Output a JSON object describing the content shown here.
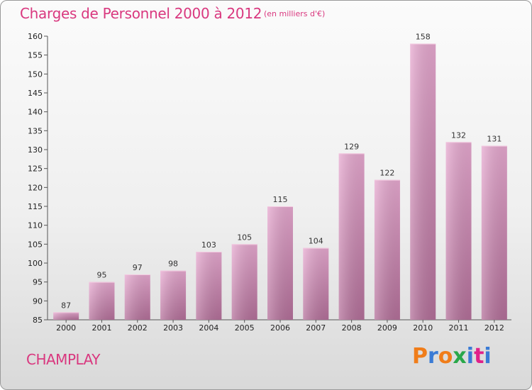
{
  "page": {
    "title": "Charges de Personnel 2000 à 2012",
    "subtitle": "(en milliers d'€)",
    "commune": "CHAMPLAY",
    "logo": {
      "letters": [
        "P",
        "r",
        "o",
        "x",
        "i",
        "t",
        "i"
      ],
      "colors": [
        "#f07d1a",
        "#3a7bd5",
        "#f07d1a",
        "#2aa84a",
        "#3a7bd5",
        "#e0218a",
        "#3a7bd5"
      ]
    }
  },
  "chart_data": {
    "type": "bar",
    "categories": [
      "2000",
      "2001",
      "2002",
      "2003",
      "2004",
      "2005",
      "2006",
      "2007",
      "2008",
      "2009",
      "2010",
      "2011",
      "2012"
    ],
    "values": [
      87,
      95,
      97,
      98,
      103,
      105,
      115,
      104,
      129,
      122,
      158,
      132,
      131
    ],
    "ylim": [
      85,
      160
    ],
    "yticks": [
      85,
      90,
      95,
      100,
      105,
      110,
      115,
      120,
      125,
      130,
      135,
      140,
      145,
      150,
      155,
      160
    ],
    "bar_color": "#d98fbb",
    "grid": false,
    "legend": "none"
  }
}
